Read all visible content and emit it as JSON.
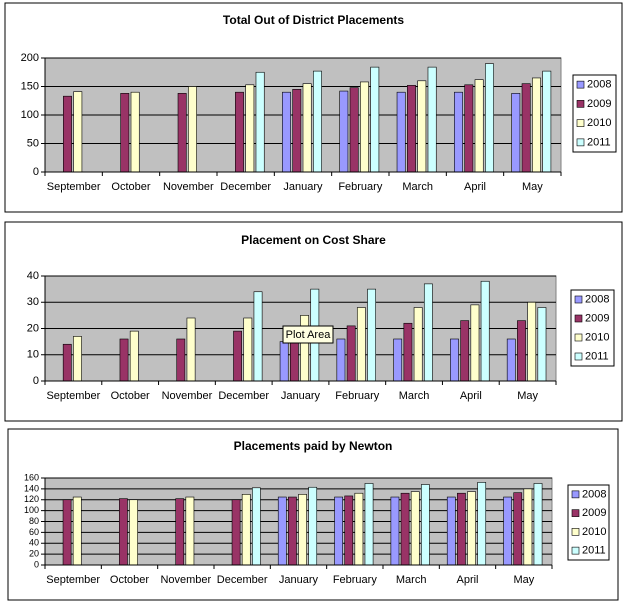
{
  "chart_data": [
    {
      "type": "bar",
      "title": "Total Out of District Placements",
      "categories": [
        "September",
        "October",
        "November",
        "December",
        "January",
        "February",
        "March",
        "April",
        "May"
      ],
      "series": [
        {
          "name": "2008",
          "color": "#9999ff",
          "values": [
            null,
            null,
            null,
            null,
            140,
            142,
            140,
            140,
            138
          ]
        },
        {
          "name": "2009",
          "color": "#993366",
          "values": [
            133,
            138,
            138,
            140,
            145,
            148,
            152,
            153,
            155
          ]
        },
        {
          "name": "2010",
          "color": "#ffffcc",
          "values": [
            141,
            140,
            150,
            153,
            155,
            158,
            160,
            162,
            165
          ]
        },
        {
          "name": "2011",
          "color": "#ccffff",
          "values": [
            null,
            null,
            null,
            175,
            177,
            184,
            184,
            190,
            177
          ]
        }
      ],
      "ylim": [
        0,
        200
      ],
      "yticks": [
        0,
        50,
        100,
        150,
        200
      ],
      "grid": true,
      "legend": "right"
    },
    {
      "type": "bar",
      "title": "Placement on Cost Share",
      "categories": [
        "September",
        "October",
        "November",
        "December",
        "January",
        "February",
        "March",
        "April",
        "May"
      ],
      "series": [
        {
          "name": "2008",
          "color": "#9999ff",
          "values": [
            null,
            null,
            null,
            null,
            15,
            16,
            16,
            16,
            16
          ]
        },
        {
          "name": "2009",
          "color": "#993366",
          "values": [
            14,
            16,
            16,
            19,
            15,
            21,
            22,
            23,
            23
          ]
        },
        {
          "name": "2010",
          "color": "#ffffcc",
          "values": [
            17,
            19,
            24,
            24,
            25,
            28,
            28,
            29,
            30
          ]
        },
        {
          "name": "2011",
          "color": "#ccffff",
          "values": [
            null,
            null,
            null,
            34,
            35,
            35,
            37,
            38,
            28
          ]
        }
      ],
      "ylim": [
        0,
        40
      ],
      "yticks": [
        0,
        10,
        20,
        30,
        40
      ],
      "grid": true,
      "legend": "right",
      "tooltip": "Plot Area"
    },
    {
      "type": "bar",
      "title": "Placements paid by Newton",
      "categories": [
        "September",
        "October",
        "November",
        "December",
        "January",
        "February",
        "March",
        "April",
        "May"
      ],
      "series": [
        {
          "name": "2008",
          "color": "#9999ff",
          "values": [
            null,
            null,
            null,
            null,
            125,
            125,
            125,
            125,
            125
          ]
        },
        {
          "name": "2009",
          "color": "#993366",
          "values": [
            120,
            122,
            122,
            120,
            125,
            127,
            132,
            132,
            133
          ]
        },
        {
          "name": "2010",
          "color": "#ffffcc",
          "values": [
            125,
            120,
            125,
            130,
            130,
            132,
            135,
            135,
            140
          ]
        },
        {
          "name": "2011",
          "color": "#ccffff",
          "values": [
            null,
            null,
            null,
            142,
            143,
            150,
            148,
            152,
            150
          ]
        }
      ],
      "ylim": [
        0,
        160
      ],
      "yticks": [
        0,
        20,
        40,
        60,
        80,
        100,
        120,
        140,
        160
      ],
      "grid": true,
      "legend": "right"
    }
  ]
}
